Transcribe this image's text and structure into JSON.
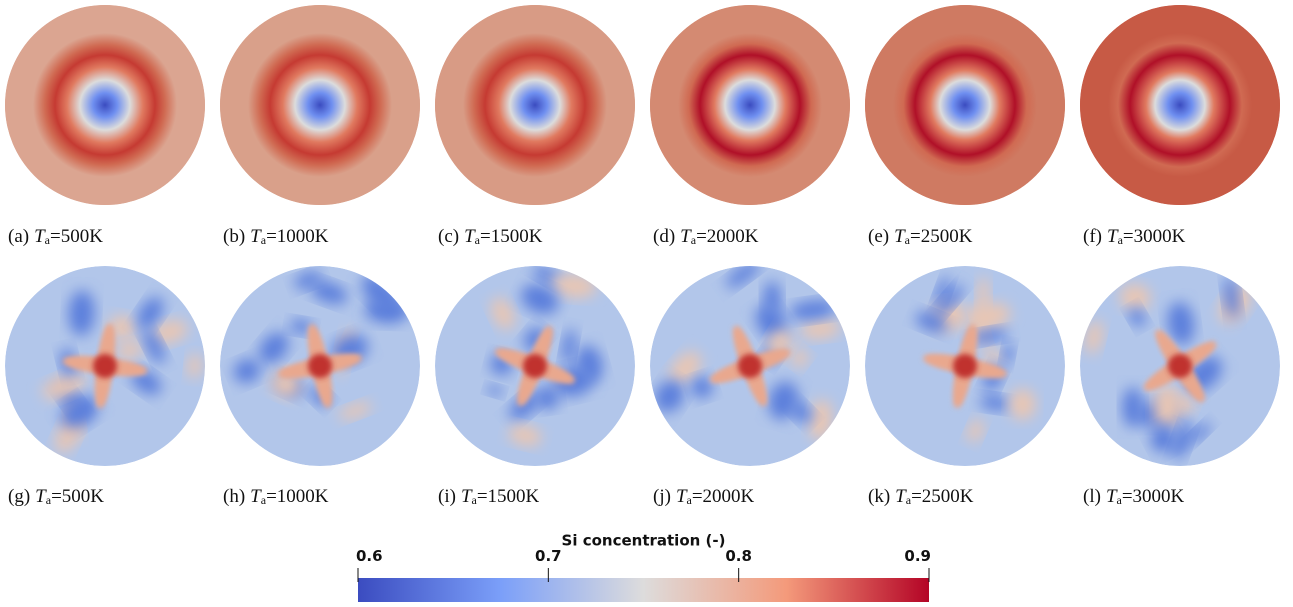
{
  "figure": {
    "panels": [
      {
        "label": "(a)",
        "var": "T",
        "sub": "a",
        "value": "=500K"
      },
      {
        "label": "(b)",
        "var": "T",
        "sub": "a",
        "value": "=1000K"
      },
      {
        "label": "(c)",
        "var": "T",
        "sub": "a",
        "value": "=1500K"
      },
      {
        "label": "(d)",
        "var": "T",
        "sub": "a",
        "value": "=2000K"
      },
      {
        "label": "(e)",
        "var": "T",
        "sub": "a",
        "value": "=2500K"
      },
      {
        "label": "(f)",
        "var": "T",
        "sub": "a",
        "value": "=3000K"
      },
      {
        "label": "(g)",
        "var": "T",
        "sub": "a",
        "value": "=500K"
      },
      {
        "label": "(h)",
        "var": "T",
        "sub": "a",
        "value": "=1000K"
      },
      {
        "label": "(i)",
        "var": "T",
        "sub": "a",
        "value": "=1500K"
      },
      {
        "label": "(j)",
        "var": "T",
        "sub": "a",
        "value": "=2000K"
      },
      {
        "label": "(k)",
        "var": "T",
        "sub": "a",
        "value": "=2500K"
      },
      {
        "label": "(l)",
        "var": "T",
        "sub": "a",
        "value": "=3000K"
      }
    ],
    "colorbar": {
      "title": "Si concentration (-)",
      "range": [
        0.6,
        0.9
      ],
      "ticks": [
        0.6,
        0.7,
        0.8,
        0.9
      ]
    }
  }
}
